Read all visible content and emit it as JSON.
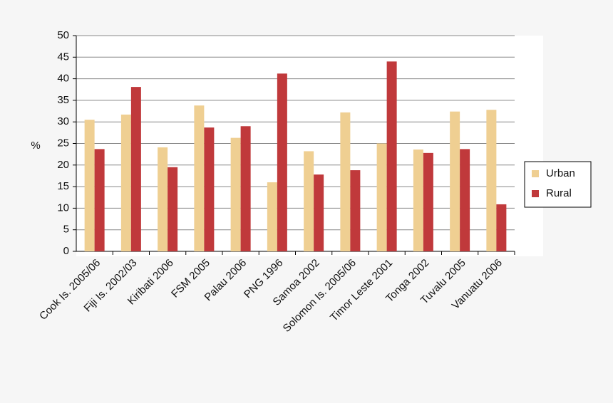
{
  "chart_data": {
    "type": "bar",
    "y_label": "%",
    "categories": [
      "Cook Is. 2005/06",
      "Fiji Is. 2002/03",
      "Kiribati 2006",
      "FSM 2005",
      "Palau 2006",
      "PNG 1996",
      "Samoa 2002",
      "Solomon Is. 2005/06",
      "Timor Leste 2001",
      "Tonga 2002",
      "Tuvalu 2005",
      "Vanuatu 2006"
    ],
    "series": [
      {
        "name": "Urban",
        "color": "#efcf92",
        "values": [
          30.5,
          31.7,
          24.1,
          33.8,
          26.3,
          16.0,
          23.2,
          32.2,
          25.0,
          23.6,
          32.4,
          32.8
        ]
      },
      {
        "name": "Rural",
        "color": "#c0393b",
        "values": [
          23.7,
          38.1,
          19.5,
          28.7,
          29.0,
          41.2,
          17.8,
          18.8,
          44.0,
          22.8,
          23.7,
          10.9
        ]
      }
    ],
    "ylim": [
      0,
      50
    ],
    "yticks": [
      0,
      5,
      10,
      15,
      20,
      25,
      30,
      35,
      40,
      45,
      50
    ],
    "grid": true,
    "legend": "right"
  }
}
